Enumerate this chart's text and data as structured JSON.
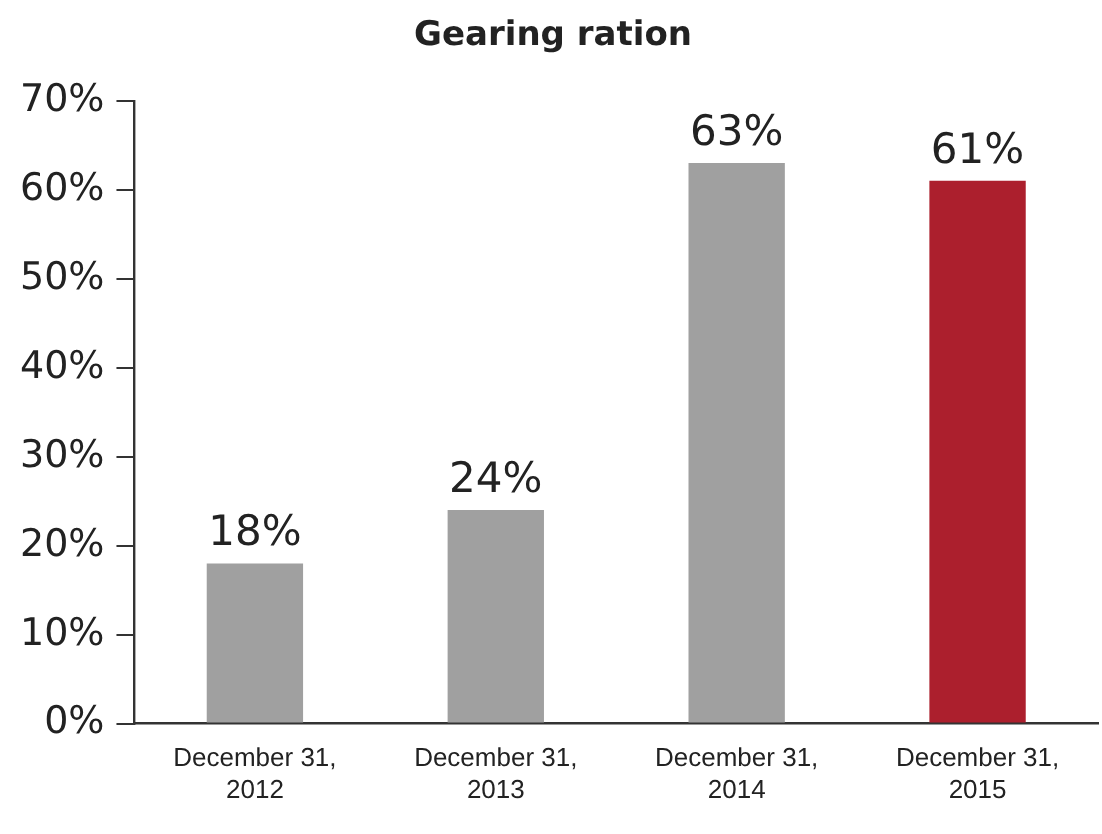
{
  "chart_data": {
    "type": "bar",
    "title": "Gearing ration",
    "categories": [
      "December 31, 2012",
      "December 31, 2013",
      "December 31, 2014",
      "December 31, 2015"
    ],
    "values": [
      18,
      24,
      63,
      61
    ],
    "colors": [
      "#a0a0a0",
      "#a0a0a0",
      "#a0a0a0",
      "#ac1f2d"
    ],
    "value_labels": [
      "18%",
      "24%",
      "63%",
      "61%"
    ],
    "ylim": [
      0,
      70
    ],
    "yticks": [
      {
        "value": 0,
        "label": "0%"
      },
      {
        "value": 10,
        "label": "10%"
      },
      {
        "value": 20,
        "label": "20%"
      },
      {
        "value": 30,
        "label": "30%"
      },
      {
        "value": 40,
        "label": "40%"
      },
      {
        "value": 50,
        "label": "50%"
      },
      {
        "value": 60,
        "label": "60%"
      },
      {
        "value": 70,
        "label": "70%"
      }
    ],
    "grid": false,
    "legend": false
  }
}
